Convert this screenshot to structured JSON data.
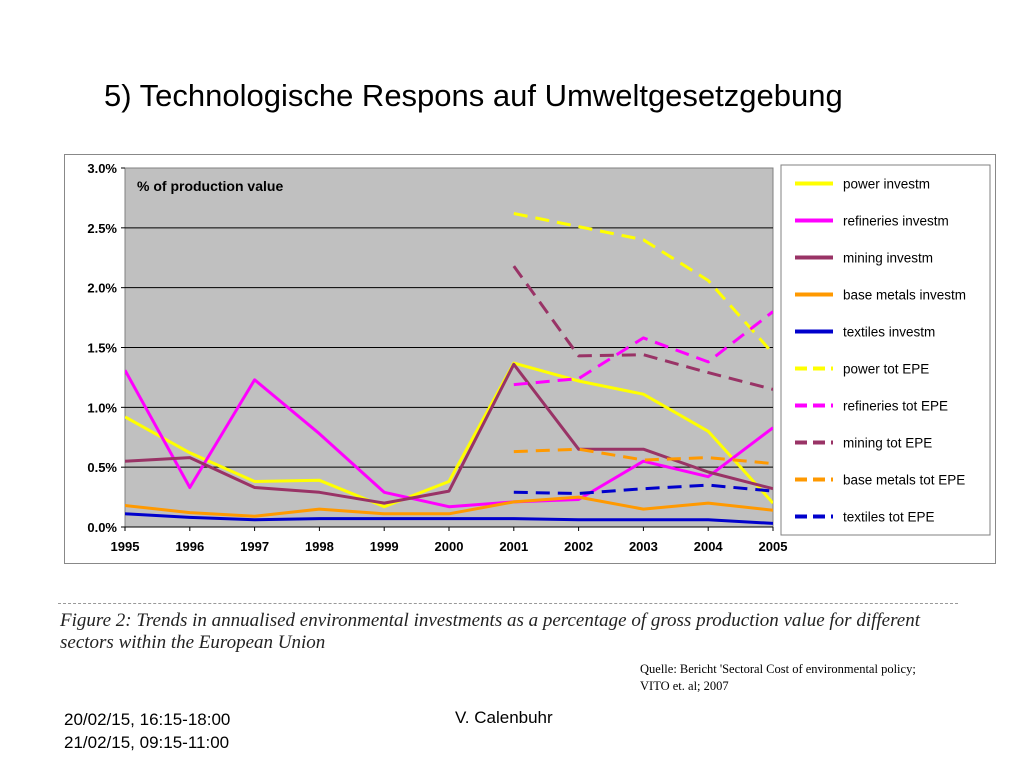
{
  "slide": {
    "title": "5) Technologische Respons auf Umweltgesetzgebung",
    "caption": "Figure 2: Trends in annualised environmental investments as a percentage of gross production value for different sectors within the European Union",
    "source_line1": "Quelle: Bericht 'Sectoral Cost of environmental policy;",
    "source_line2": "VITO et. al; 2007",
    "footer_date1": "20/02/15, 16:15-18:00",
    "footer_date2": "21/02/15, 09:15-11:00",
    "footer_author": "V. Calenbuhr"
  },
  "chart_data": {
    "type": "line",
    "title": "% of production value",
    "xlabel": "",
    "ylabel": "",
    "x": [
      "1995",
      "1996",
      "1997",
      "1998",
      "1999",
      "2000",
      "2001",
      "2002",
      "2003",
      "2004",
      "2005"
    ],
    "ylim": [
      0,
      3.0
    ],
    "yticks": [
      "0.0%",
      "0.5%",
      "1.0%",
      "1.5%",
      "2.0%",
      "2.5%",
      "3.0%"
    ],
    "grid": true,
    "plot_background": "#c0c0c0",
    "legend_position": "right",
    "series": [
      {
        "name": "power investm",
        "color": "#ffff00",
        "dashed": false,
        "values": [
          0.92,
          0.62,
          0.38,
          0.39,
          0.17,
          0.38,
          1.37,
          1.22,
          1.11,
          0.8,
          0.2
        ]
      },
      {
        "name": "refineries investm",
        "color": "#ff00ff",
        "dashed": false,
        "values": [
          1.31,
          0.33,
          1.23,
          0.78,
          0.29,
          0.17,
          0.21,
          0.23,
          0.55,
          0.42,
          0.83
        ]
      },
      {
        "name": "mining investm",
        "color": "#993366",
        "dashed": false,
        "values": [
          0.55,
          0.58,
          0.33,
          0.29,
          0.2,
          0.3,
          1.36,
          0.65,
          0.65,
          0.46,
          0.32
        ]
      },
      {
        "name": "base metals investm",
        "color": "#ff9900",
        "dashed": false,
        "values": [
          0.18,
          0.12,
          0.09,
          0.15,
          0.11,
          0.11,
          0.21,
          0.25,
          0.15,
          0.2,
          0.14
        ]
      },
      {
        "name": "textiles investm",
        "color": "#0000cc",
        "dashed": false,
        "values": [
          0.11,
          0.08,
          0.06,
          0.07,
          0.07,
          0.07,
          0.07,
          0.06,
          0.06,
          0.06,
          0.03
        ]
      },
      {
        "name": "power tot EPE",
        "color": "#ffff00",
        "dashed": true,
        "values": [
          null,
          null,
          null,
          null,
          null,
          null,
          2.62,
          2.51,
          2.4,
          2.06,
          1.45
        ]
      },
      {
        "name": "refineries tot EPE",
        "color": "#ff00ff",
        "dashed": true,
        "values": [
          null,
          null,
          null,
          null,
          null,
          null,
          1.19,
          1.24,
          1.58,
          1.38,
          1.8
        ]
      },
      {
        "name": "mining tot EPE",
        "color": "#993366",
        "dashed": true,
        "values": [
          null,
          null,
          null,
          null,
          null,
          null,
          2.18,
          1.43,
          1.44,
          1.29,
          1.15
        ]
      },
      {
        "name": "base metals tot EPE",
        "color": "#ff9900",
        "dashed": true,
        "values": [
          null,
          null,
          null,
          null,
          null,
          null,
          0.63,
          0.65,
          0.56,
          0.58,
          0.53
        ]
      },
      {
        "name": "textiles tot EPE",
        "color": "#0000cc",
        "dashed": true,
        "values": [
          null,
          null,
          null,
          null,
          null,
          null,
          0.29,
          0.28,
          0.32,
          0.35,
          0.3
        ]
      }
    ]
  }
}
